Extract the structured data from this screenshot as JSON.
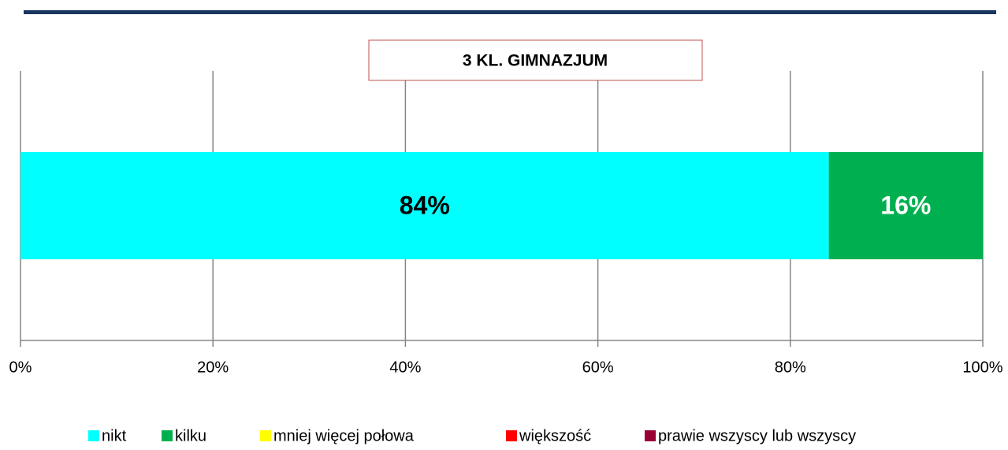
{
  "chart_data": {
    "type": "stacked-bar-horizontal",
    "title": "3 KL. GIMNAZJUM",
    "categories": [
      null
    ],
    "series": [
      {
        "name": "nikt",
        "color": "#00ffff",
        "values": [
          84
        ],
        "value_labels": [
          "84%"
        ]
      },
      {
        "name": "kilku",
        "color": "#00b050",
        "values": [
          16
        ],
        "value_labels": [
          "16%"
        ]
      },
      {
        "name": "mniej więcej połowa",
        "color": "#ffff00",
        "values": [
          0
        ]
      },
      {
        "name": "większość",
        "color": "#ff0000",
        "values": [
          0
        ]
      },
      {
        "name": "prawie wszyscy lub wszyscy",
        "color": "#990033",
        "values": [
          0
        ]
      }
    ],
    "xlim": [
      0,
      100
    ],
    "xticks": [
      {
        "value": 0,
        "label": "0%"
      },
      {
        "value": 20,
        "label": "20%"
      },
      {
        "value": 40,
        "label": "40%"
      },
      {
        "value": 60,
        "label": "60%"
      },
      {
        "value": 80,
        "label": "80%"
      },
      {
        "value": 100,
        "label": "100%"
      }
    ],
    "grid": true,
    "legend": "bottom"
  }
}
